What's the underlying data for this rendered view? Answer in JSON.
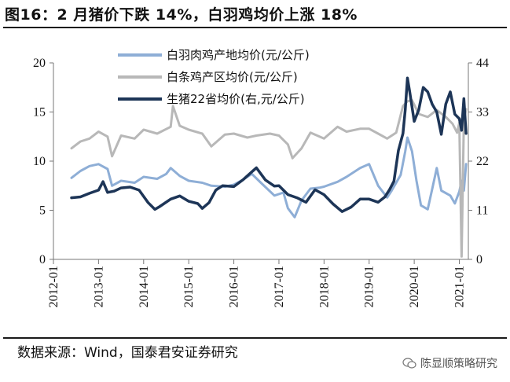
{
  "figure": {
    "title": "图16：2 月猪价下跌 14%，白羽鸡均价上涨 18%",
    "source": "数据来源：Wind，国泰君安证券研究",
    "watermark": "陈显顺策略研究"
  },
  "chart_data": {
    "type": "line",
    "title": "图16：2 月猪价下跌 14%，白羽鸡均价上涨 18%",
    "x_ticks": [
      "2012-01",
      "2013-01",
      "2014-01",
      "2015-01",
      "2016-01",
      "2017-01",
      "2018-01",
      "2019-01",
      "2020-01",
      "2021-01"
    ],
    "x_range": [
      2012.0,
      2021.2
    ],
    "left_axis": {
      "ylim": [
        0,
        20
      ],
      "ticks": [
        0,
        5,
        10,
        15,
        20
      ]
    },
    "right_axis": {
      "ylim": [
        0,
        44
      ],
      "ticks": [
        0,
        11,
        22,
        33,
        44
      ]
    },
    "legend_position": "top-center",
    "series": [
      {
        "name": "白羽肉鸡产地均价(元/公斤)",
        "axis": "left",
        "color": "#8eaed6",
        "width": 3,
        "t": [
          2012.4,
          2012.6,
          2012.8,
          2013.0,
          2013.2,
          2013.3,
          2013.5,
          2013.8,
          2014.0,
          2014.3,
          2014.5,
          2014.6,
          2014.8,
          2015.0,
          2015.3,
          2015.5,
          2015.8,
          2016.0,
          2016.2,
          2016.4,
          2016.6,
          2016.9,
          2017.1,
          2017.2,
          2017.35,
          2017.5,
          2017.7,
          2017.9,
          2018.0,
          2018.3,
          2018.5,
          2018.8,
          2019.0,
          2019.2,
          2019.4,
          2019.5,
          2019.7,
          2019.8,
          2019.85,
          2019.95,
          2020.05,
          2020.15,
          2020.3,
          2020.4,
          2020.5,
          2020.6,
          2020.8,
          2020.9,
          2021.0,
          2021.05,
          2021.1,
          2021.15
        ],
        "values": [
          8.3,
          9.0,
          9.5,
          9.7,
          9.2,
          7.5,
          8.0,
          7.8,
          8.4,
          8.2,
          8.7,
          9.3,
          8.5,
          8.0,
          7.8,
          7.5,
          7.4,
          7.6,
          8.1,
          8.7,
          7.8,
          6.5,
          6.8,
          5.2,
          4.3,
          6.0,
          7.2,
          7.3,
          7.4,
          7.9,
          8.4,
          9.3,
          9.7,
          7.5,
          6.3,
          7.0,
          8.6,
          11.0,
          12.4,
          11.0,
          8.0,
          5.5,
          5.1,
          7.2,
          9.3,
          7.0,
          6.5,
          5.7,
          6.9,
          8.0,
          7.0,
          9.7
        ]
      },
      {
        "name": "白条鸡产区均价(元/公斤)",
        "axis": "left",
        "color": "#b8b8b8",
        "width": 3,
        "t": [
          2012.4,
          2012.6,
          2012.8,
          2013.0,
          2013.2,
          2013.3,
          2013.5,
          2013.8,
          2014.0,
          2014.3,
          2014.6,
          2014.65,
          2014.8,
          2015.0,
          2015.3,
          2015.5,
          2015.8,
          2016.0,
          2016.3,
          2016.5,
          2016.8,
          2017.0,
          2017.2,
          2017.3,
          2017.5,
          2017.7,
          2018.0,
          2018.3,
          2018.5,
          2018.8,
          2019.0,
          2019.2,
          2019.4,
          2019.6,
          2019.75,
          2019.85,
          2019.95,
          2020.1,
          2020.3,
          2020.5,
          2020.7,
          2020.85,
          2020.95,
          2021.0,
          2021.05,
          2021.1,
          2021.15
        ],
        "values": [
          11.3,
          12.0,
          12.3,
          13.0,
          12.5,
          10.5,
          12.6,
          12.3,
          13.2,
          12.8,
          13.5,
          15.6,
          13.6,
          13.2,
          12.8,
          11.5,
          12.7,
          12.8,
          12.4,
          12.6,
          12.8,
          12.6,
          11.7,
          10.3,
          11.3,
          12.9,
          12.3,
          13.5,
          13.0,
          13.3,
          13.3,
          12.8,
          12.3,
          12.9,
          15.6,
          16.1,
          16.2,
          14.8,
          14.5,
          15.2,
          14.5,
          13.8,
          12.9,
          13.9,
          0.3,
          14.2,
          15.3
        ]
      },
      {
        "name": "生猪22省均价(右,元/公斤)",
        "axis": "right",
        "color": "#1d3557",
        "width": 3.5,
        "t": [
          2012.4,
          2012.6,
          2012.8,
          2013.0,
          2013.1,
          2013.2,
          2013.35,
          2013.5,
          2013.7,
          2013.9,
          2014.1,
          2014.25,
          2014.35,
          2014.6,
          2014.8,
          2015.0,
          2015.2,
          2015.3,
          2015.45,
          2015.6,
          2015.75,
          2016.0,
          2016.2,
          2016.4,
          2016.5,
          2016.7,
          2016.9,
          2017.0,
          2017.2,
          2017.4,
          2017.6,
          2017.8,
          2018.0,
          2018.2,
          2018.4,
          2018.6,
          2018.8,
          2019.0,
          2019.2,
          2019.35,
          2019.45,
          2019.55,
          2019.65,
          2019.75,
          2019.8,
          2019.85,
          2019.9,
          2020.0,
          2020.1,
          2020.2,
          2020.3,
          2020.4,
          2020.5,
          2020.6,
          2020.7,
          2020.8,
          2020.9,
          2021.0,
          2021.05,
          2021.1,
          2021.15
        ],
        "values": [
          13.8,
          14.0,
          14.8,
          15.5,
          17.4,
          15.0,
          15.3,
          16.0,
          16.2,
          15.5,
          12.7,
          11.2,
          11.8,
          13.5,
          14.2,
          13.0,
          12.5,
          11.4,
          12.7,
          15.5,
          16.5,
          16.3,
          17.8,
          19.6,
          20.5,
          17.8,
          16.4,
          16.5,
          14.5,
          13.8,
          12.8,
          15.6,
          14.5,
          12.4,
          10.7,
          11.7,
          13.5,
          13.5,
          12.8,
          14.0,
          15.6,
          17.5,
          24.4,
          28.2,
          33.5,
          40.6,
          37.5,
          30.9,
          33.5,
          38.5,
          37.5,
          34.7,
          33.0,
          28.0,
          34.8,
          37.5,
          32.5,
          31.5,
          28.9,
          36.0,
          28.2
        ]
      }
    ]
  }
}
